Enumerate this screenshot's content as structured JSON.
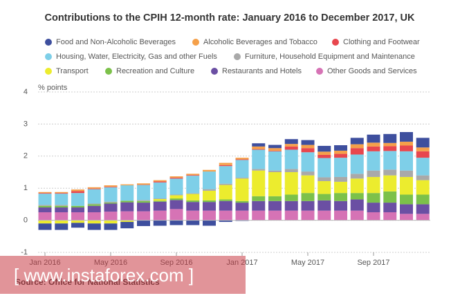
{
  "chart_data": {
    "type": "bar",
    "stacked": true,
    "title": "Contributions to the CPIH 12-month rate: January 2016 to December 2017, UK",
    "y_label": "% points",
    "source": "Source: Office for National Statistics",
    "watermark": "[ www.instaforex.com ]",
    "categories": [
      "Jan 2016",
      null,
      null,
      null,
      "May 2016",
      null,
      null,
      null,
      "Sep 2016",
      null,
      null,
      null,
      "Jan 2017",
      null,
      null,
      null,
      "May 2017",
      null,
      null,
      null,
      "Sep 2017",
      null,
      null,
      null
    ],
    "ylim": [
      -1,
      4
    ],
    "yticks": [
      -1,
      0,
      1,
      2,
      3,
      4
    ],
    "grid": true,
    "series": [
      {
        "name": "Food and Non-Alcoholic Beverages",
        "color": "#3e4f9e",
        "values": [
          -0.2,
          -0.2,
          -0.15,
          -0.2,
          -0.2,
          -0.2,
          -0.18,
          -0.17,
          -0.15,
          -0.15,
          -0.17,
          -0.05,
          -0.02,
          0.1,
          0.1,
          0.15,
          0.15,
          0.18,
          0.17,
          0.2,
          0.25,
          0.28,
          0.3,
          0.3
        ]
      },
      {
        "name": "Alcoholic Beverages and Tobacco",
        "color": "#f5a04a",
        "values": [
          0.03,
          0.03,
          0.05,
          0.04,
          0.04,
          0.03,
          0.04,
          0.04,
          0.04,
          0.04,
          0.05,
          0.07,
          0.05,
          0.08,
          0.08,
          0.08,
          0.1,
          0.1,
          0.1,
          0.12,
          0.12,
          0.1,
          0.12,
          0.12
        ]
      },
      {
        "name": "Clothing and Footwear",
        "color": "#e8474e",
        "values": [
          0.02,
          0.02,
          0.06,
          0.02,
          0.02,
          0.0,
          0.01,
          0.03,
          0.03,
          0.02,
          0.0,
          0.03,
          0.02,
          0.02,
          0.02,
          0.1,
          0.13,
          0.1,
          0.12,
          0.2,
          0.15,
          0.15,
          0.18,
          0.2
        ]
      },
      {
        "name": "Housing, Water, Electricity, Gas and other Fuels",
        "color": "#7ecfe8",
        "values": [
          0.35,
          0.35,
          0.4,
          0.45,
          0.45,
          0.48,
          0.47,
          0.5,
          0.5,
          0.55,
          0.55,
          0.55,
          0.55,
          0.6,
          0.6,
          0.6,
          0.6,
          0.6,
          0.6,
          0.6,
          0.6,
          0.58,
          0.6,
          0.55
        ]
      },
      {
        "name": "Furniture, Household Equipment and Maintenance",
        "color": "#a9a9a9",
        "values": [
          0.03,
          0.03,
          0.0,
          0.02,
          0.03,
          0.0,
          0.03,
          0.02,
          0.02,
          0.02,
          0.05,
          0.04,
          0.03,
          0.05,
          0.05,
          0.1,
          0.12,
          0.12,
          0.15,
          0.15,
          0.2,
          0.18,
          0.2,
          0.15
        ]
      },
      {
        "name": "Transport",
        "color": "#ecec2e",
        "values": [
          -0.1,
          -0.1,
          -0.08,
          -0.1,
          -0.1,
          -0.05,
          0.0,
          0.05,
          0.1,
          0.2,
          0.3,
          0.45,
          0.7,
          0.8,
          0.75,
          0.7,
          0.55,
          0.4,
          0.35,
          0.45,
          0.5,
          0.5,
          0.55,
          0.45
        ]
      },
      {
        "name": "Recreation and Culture",
        "color": "#7cc14a",
        "values": [
          0.05,
          0.05,
          0.05,
          0.05,
          0.03,
          0.05,
          0.05,
          0.03,
          0.05,
          0.05,
          0.05,
          0.05,
          0.05,
          0.15,
          0.15,
          0.2,
          0.25,
          0.2,
          0.25,
          0.2,
          0.3,
          0.35,
          0.3,
          0.3
        ]
      },
      {
        "name": "Restaurants and Hotels",
        "color": "#6b4fa3",
        "values": [
          0.15,
          0.15,
          0.15,
          0.2,
          0.25,
          0.28,
          0.27,
          0.28,
          0.28,
          0.27,
          0.27,
          0.3,
          0.25,
          0.3,
          0.3,
          0.3,
          0.3,
          0.32,
          0.3,
          0.35,
          0.3,
          0.3,
          0.3,
          0.3
        ]
      },
      {
        "name": "Other Goods and Services",
        "color": "#d673b5",
        "values": [
          0.25,
          0.25,
          0.25,
          0.25,
          0.27,
          0.28,
          0.28,
          0.3,
          0.35,
          0.3,
          0.3,
          0.3,
          0.3,
          0.3,
          0.3,
          0.3,
          0.3,
          0.3,
          0.3,
          0.3,
          0.25,
          0.25,
          0.2,
          0.2
        ]
      }
    ]
  }
}
